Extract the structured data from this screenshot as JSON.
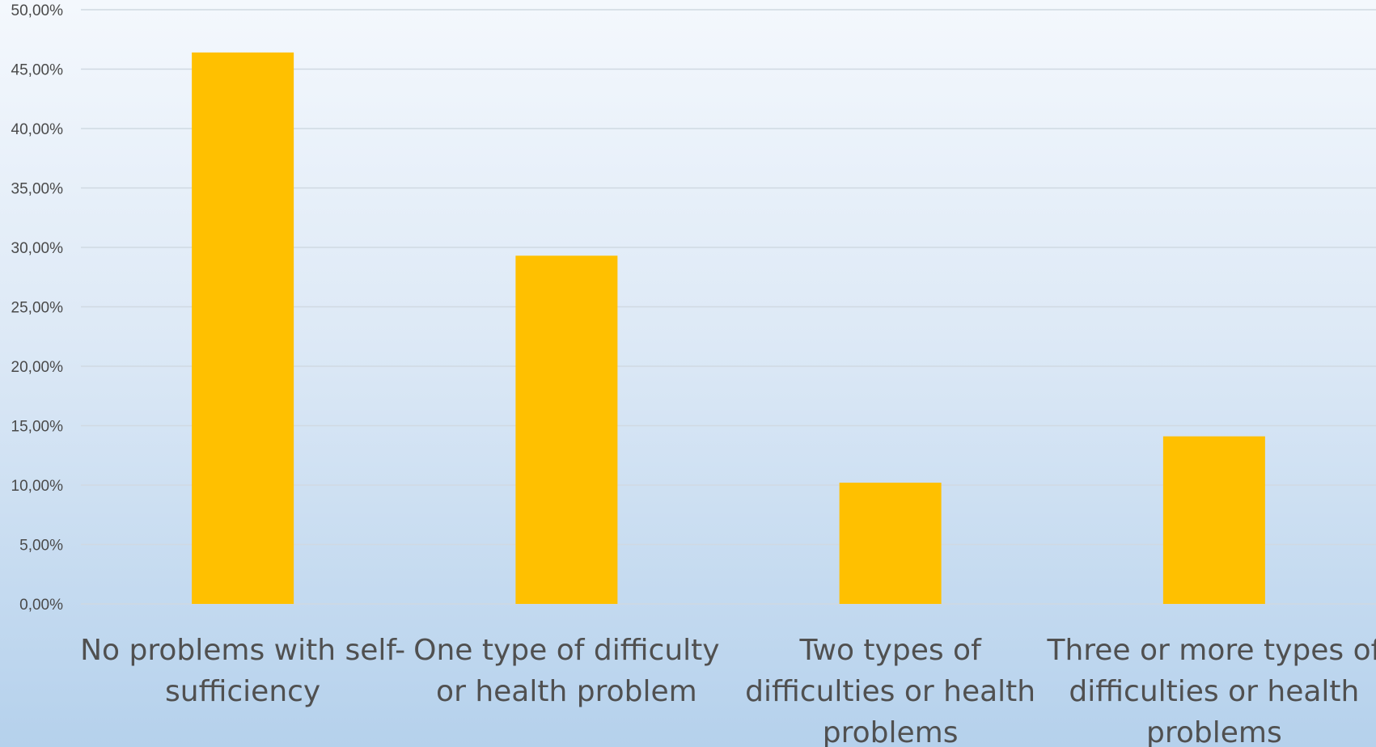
{
  "chart_data": {
    "type": "bar",
    "title": "",
    "xlabel": "",
    "ylabel": "",
    "categories": [
      [
        "No problems with self-",
        "sufficiency"
      ],
      [
        "One type of difficulty",
        "or health problem"
      ],
      [
        "Two types of",
        "difficulties or health",
        "problems"
      ],
      [
        "Three or more types of",
        "difficulties or health",
        "problems"
      ]
    ],
    "values": [
      46.4,
      29.3,
      10.2,
      14.1
    ],
    "value_unit": "%",
    "ylim": [
      0,
      50
    ],
    "yticks": [
      "0,00%",
      "5,00%",
      "10,00%",
      "15,00%",
      "20,00%",
      "25,00%",
      "30,00%",
      "35,00%",
      "40,00%",
      "45,00%",
      "50,00%"
    ],
    "grid": true,
    "bar_color": "#ffc000"
  }
}
